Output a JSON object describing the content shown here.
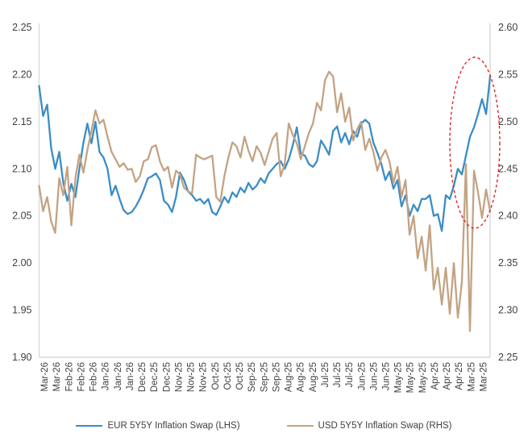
{
  "chart_data": {
    "type": "line",
    "title": "",
    "xlabel": "",
    "x_labels": [
      "Mar-26",
      "Mar-26",
      "Feb-26",
      "Feb-26",
      "Feb-26",
      "Jan-26",
      "Jan-26",
      "Jan-26",
      "Dec-25",
      "Dec-25",
      "Dec-25",
      "Nov-25",
      "Nov-25",
      "Nov-25",
      "Oct-25",
      "Oct-25",
      "Oct-25",
      "Sep-25",
      "Sep-25",
      "Sep-25",
      "Aug-25",
      "Aug-25",
      "Aug-25",
      "Jul-25",
      "Jul-25",
      "Jul-25",
      "Jun-25",
      "Jun-25",
      "Jun-25",
      "May-25",
      "May-25",
      "May-25",
      "Apr-25",
      "Apr-25",
      "Apr-25",
      "Mar-25",
      "Mar-25"
    ],
    "left_axis": {
      "min": 1.9,
      "max": 2.25,
      "step": 0.05,
      "ticks": [
        "2.25",
        "2.20",
        "2.15",
        "2.10",
        "2.05",
        "2.00",
        "1.95",
        "1.90"
      ]
    },
    "right_axis": {
      "min": 2.25,
      "max": 2.6,
      "step": 0.05,
      "ticks": [
        "2.60",
        "2.55",
        "2.50",
        "2.45",
        "2.40",
        "2.35",
        "2.30",
        "2.25"
      ]
    },
    "grid": false,
    "legend_position": "bottom",
    "series": [
      {
        "name": "EUR 5Y5Y Inflation Swap (LHS)",
        "axis": "left",
        "color": "#3C8DC5",
        "values": [
          2.188,
          2.156,
          2.168,
          2.122,
          2.1,
          2.118,
          2.085,
          2.066,
          2.084,
          2.07,
          2.1,
          2.128,
          2.148,
          2.127,
          2.15,
          2.118,
          2.112,
          2.1,
          2.072,
          2.082,
          2.068,
          2.056,
          2.052,
          2.054,
          2.06,
          2.068,
          2.078,
          2.09,
          2.092,
          2.095,
          2.088,
          2.066,
          2.062,
          2.054,
          2.07,
          2.096,
          2.088,
          2.076,
          2.072,
          2.066,
          2.068,
          2.063,
          2.068,
          2.054,
          2.051,
          2.06,
          2.07,
          2.064,
          2.075,
          2.07,
          2.08,
          2.075,
          2.085,
          2.078,
          2.082,
          2.09,
          2.085,
          2.095,
          2.1,
          2.105,
          2.108,
          2.1,
          2.11,
          2.125,
          2.144,
          2.116,
          2.114,
          2.105,
          2.102,
          2.108,
          2.13,
          2.123,
          2.115,
          2.14,
          2.145,
          2.128,
          2.138,
          2.126,
          2.14,
          2.134,
          2.148,
          2.152,
          2.148,
          2.128,
          2.117,
          2.105,
          2.088,
          2.097,
          2.079,
          2.088,
          2.06,
          2.072,
          2.05,
          2.062,
          2.055,
          2.068,
          2.068,
          2.072,
          2.05,
          2.052,
          2.034,
          2.072,
          2.068,
          2.082,
          2.1,
          2.094,
          2.114,
          2.134,
          2.144,
          2.158,
          2.174,
          2.158,
          2.198
        ]
      },
      {
        "name": "USD 5Y5Y Inflation Swap (RHS)",
        "axis": "right",
        "color": "#C3A384",
        "values": [
          2.432,
          2.405,
          2.42,
          2.394,
          2.382,
          2.44,
          2.422,
          2.452,
          2.39,
          2.44,
          2.465,
          2.446,
          2.47,
          2.49,
          2.512,
          2.498,
          2.502,
          2.484,
          2.468,
          2.46,
          2.452,
          2.456,
          2.449,
          2.45,
          2.436,
          2.442,
          2.458,
          2.46,
          2.473,
          2.475,
          2.458,
          2.448,
          2.452,
          2.43,
          2.448,
          2.444,
          2.43,
          2.426,
          2.424,
          2.465,
          2.462,
          2.46,
          2.462,
          2.464,
          2.42,
          2.415,
          2.442,
          2.462,
          2.478,
          2.474,
          2.462,
          2.484,
          2.469,
          2.458,
          2.474,
          2.467,
          2.454,
          2.468,
          2.482,
          2.488,
          2.442,
          2.455,
          2.498,
          2.486,
          2.477,
          2.46,
          2.474,
          2.488,
          2.498,
          2.52,
          2.512,
          2.544,
          2.553,
          2.548,
          2.51,
          2.53,
          2.5,
          2.515,
          2.48,
          2.492,
          2.5,
          2.47,
          2.482,
          2.468,
          2.448,
          2.462,
          2.47,
          2.458,
          2.435,
          2.452,
          2.42,
          2.438,
          2.38,
          2.4,
          2.355,
          2.378,
          2.342,
          2.39,
          2.322,
          2.345,
          2.306,
          2.345,
          2.296,
          2.35,
          2.292,
          2.33,
          2.455,
          2.278,
          2.448,
          2.425,
          2.398,
          2.428,
          2.405
        ]
      }
    ],
    "annotation": {
      "shape": "ellipse",
      "color": "#E02424",
      "cx": 589,
      "cy": 177,
      "rx": 31,
      "ry": 106,
      "style": "dashed"
    },
    "axis_line_color": "#D9D9D9",
    "tick_text_color": "#404040"
  },
  "legend": {
    "items": [
      {
        "label": "EUR 5Y5Y Inflation Swap (LHS)",
        "color": "#3C8DC5"
      },
      {
        "label": "USD 5Y5Y Inflation Swap (RHS)",
        "color": "#C3A384"
      }
    ]
  }
}
